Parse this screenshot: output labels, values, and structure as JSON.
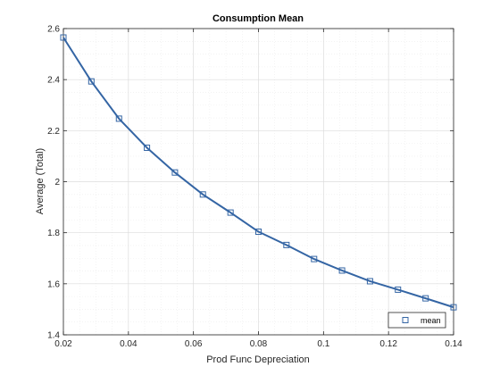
{
  "chart_data": {
    "type": "line",
    "title": "Consumption Mean",
    "xlabel": "Prod Func Depreciation",
    "ylabel": "Average (Total)",
    "xlim": [
      0.02,
      0.14
    ],
    "ylim": [
      1.4,
      2.6
    ],
    "x_ticks": [
      0.02,
      0.04,
      0.06,
      0.08,
      0.1,
      0.12,
      0.14
    ],
    "x_tick_labels": [
      "0.02",
      "0.04",
      "0.06",
      "0.08",
      "0.1",
      "0.12",
      "0.14"
    ],
    "y_ticks": [
      1.4,
      1.6,
      1.8,
      2.0,
      2.2,
      2.4,
      2.6
    ],
    "y_tick_labels": [
      "1.4",
      "1.6",
      "1.8",
      "2",
      "2.2",
      "2.4",
      "2.6"
    ],
    "grid": true,
    "legend_position": "bottom-right",
    "series": [
      {
        "name": "mean",
        "color": "#3465a4",
        "marker": "square",
        "x": [
          0.02,
          0.0286,
          0.0371,
          0.0457,
          0.0543,
          0.0629,
          0.0714,
          0.08,
          0.0886,
          0.0971,
          0.1057,
          0.1143,
          0.1229,
          0.1314,
          0.14
        ],
        "y": [
          2.565,
          2.393,
          2.247,
          2.133,
          2.036,
          1.95,
          1.879,
          1.804,
          1.752,
          1.697,
          1.652,
          1.61,
          1.577,
          1.543,
          1.508
        ]
      }
    ]
  }
}
